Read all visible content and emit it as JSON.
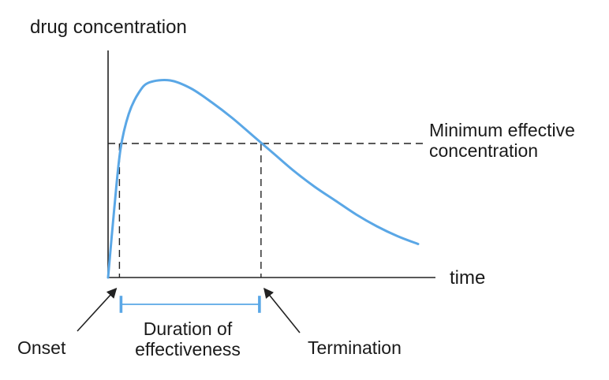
{
  "chart_data": {
    "type": "line",
    "title": "",
    "ylabel": "drug concentration",
    "xlabel": "time",
    "x": [
      0,
      0.3,
      0.6,
      1.0,
      1.5,
      2.0,
      3.0,
      4.0,
      5.0,
      6.0,
      7.0,
      8.0,
      9.0,
      10.0,
      11.0,
      12.0,
      13.0,
      14.0,
      15.0
    ],
    "series": [
      {
        "values": [
          0,
          0.35,
          0.65,
          0.83,
          0.94,
          0.99,
          1.0,
          0.96,
          0.89,
          0.81,
          0.72,
          0.63,
          0.54,
          0.46,
          0.39,
          0.32,
          0.26,
          0.21,
          0.17
        ],
        "color": "#5aa7e6"
      }
    ],
    "threshold": {
      "value": 0.68,
      "label_line1": "Minimum effective",
      "label_line2": "concentration"
    },
    "onset_x": 0.55,
    "termination_x": 7.4,
    "annotations": {
      "onset": "Onset",
      "termination": "Termination",
      "duration_line1": "Duration of",
      "duration_line2": "effectiveness"
    },
    "xlim": [
      0,
      15.0
    ],
    "ylim": [
      0,
      1.0
    ],
    "grid": false,
    "legend": "none"
  }
}
